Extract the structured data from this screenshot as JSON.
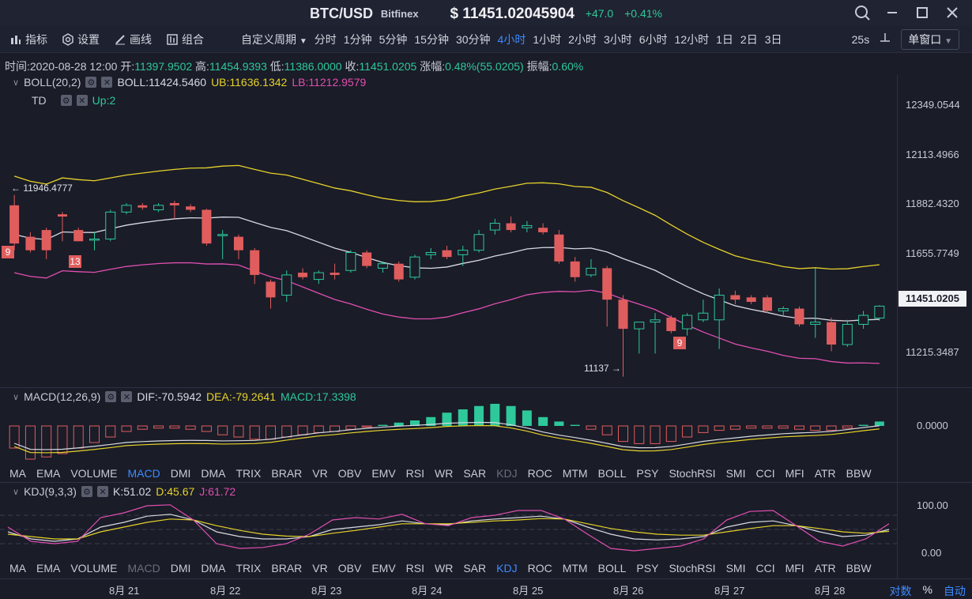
{
  "window": {
    "pair": "BTC/USD",
    "exchange": "Bitfinex",
    "price": "$ 11451.02045904",
    "change": "+47.0",
    "change_pct": "+0.41%"
  },
  "toolbar": {
    "indicator": "指标",
    "settings": "设置",
    "draw": "画线",
    "combo": "组合",
    "custom_period": "自定义周期",
    "periods": [
      "分时",
      "1分钟",
      "5分钟",
      "15分钟",
      "30分钟",
      "4小时",
      "1小时",
      "2小时",
      "3小时",
      "6小时",
      "12小时",
      "1日",
      "2日",
      "3日"
    ],
    "active_period": "4小时",
    "timer": "25s",
    "single_window": "单窗口"
  },
  "info": {
    "time_label": "时间:",
    "time": "2020-08-28 12:00",
    "open_label": "开:",
    "open": "11397.9502",
    "high_label": "高:",
    "high": "11454.9393",
    "low_label": "低:",
    "low": "11386.0000",
    "close_label": "收:",
    "close": "11451.0205",
    "chg_label": "涨幅:",
    "chg": "0.48%(55.0205)",
    "amp_label": "振幅:",
    "amp": "0.60%"
  },
  "boll": {
    "name": "BOLL(20,2)",
    "mid": "BOLL:11424.5460",
    "ub": "UB:11636.1342",
    "lb": "LB:11212.9579"
  },
  "td": {
    "name": "TD",
    "value": "Up:2"
  },
  "macd": {
    "name": "MACD(12,26,9)",
    "dif": "DIF:-70.5942",
    "dea": "DEA:-79.2641",
    "macd": "MACD:17.3398"
  },
  "kdj": {
    "name": "KDJ(9,3,3)",
    "k": "K:51.02",
    "d": "D:45.67",
    "j": "J:61.72"
  },
  "indicator_tabs_1": [
    "MA",
    "EMA",
    "VOLUME",
    "MACD",
    "DMI",
    "DMA",
    "TRIX",
    "BRAR",
    "VR",
    "OBV",
    "EMV",
    "RSI",
    "WR",
    "SAR",
    "KDJ",
    "ROC",
    "MTM",
    "BOLL",
    "PSY",
    "StochRSI",
    "SMI",
    "CCI",
    "MFI",
    "ATR",
    "BBW"
  ],
  "indicator_tabs_2": [
    "MA",
    "EMA",
    "VOLUME",
    "MACD",
    "DMI",
    "DMA",
    "TRIX",
    "BRAR",
    "VR",
    "OBV",
    "EMV",
    "RSI",
    "WR",
    "SAR",
    "KDJ",
    "ROC",
    "MTM",
    "BOLL",
    "PSY",
    "StochRSI",
    "SMI",
    "CCI",
    "MFI",
    "ATR",
    "BBW"
  ],
  "price_axis": [
    "12349.0544",
    "12113.4966",
    "11882.4320",
    "11655.7749",
    "11215.3487"
  ],
  "current_price_tag": "11451.0205",
  "macd_axis": "0.0000",
  "kdj_axis": [
    "100.00",
    "0.00"
  ],
  "dates": [
    "8月 21",
    "8月 22",
    "8月 23",
    "8月 24",
    "8月 25",
    "8月 26",
    "8月 27",
    "8月 28"
  ],
  "bottom_controls": [
    "对数",
    "%",
    "自动"
  ],
  "annotations": {
    "high": "← 11946.4777",
    "low": "11137 →"
  },
  "td_badges": [
    "9",
    "13",
    "9"
  ],
  "colors": {
    "up": "#2ec89a",
    "down": "#e05d5d",
    "accent": "#3d8bff",
    "ub": "#e6d22a",
    "lb": "#e04fb0",
    "mid": "#d8dae2"
  },
  "chart_data": {
    "type": "candlestick",
    "interval": "4h",
    "price_range": [
      11090,
      12480
    ],
    "candles": [
      {
        "o": 11900,
        "h": 11946,
        "l": 11700,
        "c": 11730
      },
      {
        "o": 11760,
        "h": 11780,
        "l": 11690,
        "c": 11700
      },
      {
        "o": 11790,
        "h": 11800,
        "l": 11660,
        "c": 11700
      },
      {
        "o": 11860,
        "h": 11870,
        "l": 11740,
        "c": 11850
      },
      {
        "o": 11790,
        "h": 11800,
        "l": 11740,
        "c": 11740
      },
      {
        "o": 11745,
        "h": 11780,
        "l": 11700,
        "c": 11750
      },
      {
        "o": 11750,
        "h": 11880,
        "l": 11740,
        "c": 11870
      },
      {
        "o": 11870,
        "h": 11910,
        "l": 11860,
        "c": 11900
      },
      {
        "o": 11900,
        "h": 11910,
        "l": 11880,
        "c": 11890
      },
      {
        "o": 11880,
        "h": 11910,
        "l": 11870,
        "c": 11900
      },
      {
        "o": 11910,
        "h": 11920,
        "l": 11840,
        "c": 11900
      },
      {
        "o": 11895,
        "h": 11905,
        "l": 11870,
        "c": 11880
      },
      {
        "o": 11880,
        "h": 11885,
        "l": 11720,
        "c": 11730
      },
      {
        "o": 11770,
        "h": 11790,
        "l": 11660,
        "c": 11770
      },
      {
        "o": 11760,
        "h": 11770,
        "l": 11660,
        "c": 11700
      },
      {
        "o": 11700,
        "h": 11710,
        "l": 11550,
        "c": 11590
      },
      {
        "o": 11560,
        "h": 11570,
        "l": 11440,
        "c": 11490
      },
      {
        "o": 11500,
        "h": 11610,
        "l": 11470,
        "c": 11590
      },
      {
        "o": 11600,
        "h": 11620,
        "l": 11570,
        "c": 11580
      },
      {
        "o": 11570,
        "h": 11610,
        "l": 11550,
        "c": 11600
      },
      {
        "o": 11600,
        "h": 11640,
        "l": 11570,
        "c": 11590
      },
      {
        "o": 11610,
        "h": 11700,
        "l": 11600,
        "c": 11690
      },
      {
        "o": 11690,
        "h": 11700,
        "l": 11620,
        "c": 11630
      },
      {
        "o": 11620,
        "h": 11650,
        "l": 11600,
        "c": 11640
      },
      {
        "o": 11640,
        "h": 11650,
        "l": 11560,
        "c": 11570
      },
      {
        "o": 11580,
        "h": 11680,
        "l": 11570,
        "c": 11670
      },
      {
        "o": 11680,
        "h": 11710,
        "l": 11660,
        "c": 11690
      },
      {
        "o": 11700,
        "h": 11720,
        "l": 11660,
        "c": 11670
      },
      {
        "o": 11680,
        "h": 11720,
        "l": 11630,
        "c": 11700
      },
      {
        "o": 11700,
        "h": 11790,
        "l": 11690,
        "c": 11770
      },
      {
        "o": 11790,
        "h": 11840,
        "l": 11770,
        "c": 11820
      },
      {
        "o": 11820,
        "h": 11850,
        "l": 11780,
        "c": 11790
      },
      {
        "o": 11800,
        "h": 11830,
        "l": 11780,
        "c": 11810
      },
      {
        "o": 11800,
        "h": 11820,
        "l": 11770,
        "c": 11780
      },
      {
        "o": 11770,
        "h": 11790,
        "l": 11640,
        "c": 11650
      },
      {
        "o": 11650,
        "h": 11670,
        "l": 11560,
        "c": 11580
      },
      {
        "o": 11590,
        "h": 11660,
        "l": 11580,
        "c": 11620
      },
      {
        "o": 11620,
        "h": 11630,
        "l": 11360,
        "c": 11480
      },
      {
        "o": 11480,
        "h": 11500,
        "l": 11137,
        "c": 11350
      },
      {
        "o": 11350,
        "h": 11380,
        "l": 11240,
        "c": 11380
      },
      {
        "o": 11380,
        "h": 11420,
        "l": 11240,
        "c": 11390
      },
      {
        "o": 11400,
        "h": 11410,
        "l": 11330,
        "c": 11340
      },
      {
        "o": 11350,
        "h": 11420,
        "l": 11320,
        "c": 11410
      },
      {
        "o": 11390,
        "h": 11480,
        "l": 11380,
        "c": 11420
      },
      {
        "o": 11390,
        "h": 11530,
        "l": 11260,
        "c": 11500
      },
      {
        "o": 11500,
        "h": 11520,
        "l": 11460,
        "c": 11480
      },
      {
        "o": 11490,
        "h": 11500,
        "l": 11460,
        "c": 11470
      },
      {
        "o": 11490,
        "h": 11500,
        "l": 11420,
        "c": 11430
      },
      {
        "o": 11430,
        "h": 11450,
        "l": 11410,
        "c": 11440
      },
      {
        "o": 11440,
        "h": 11450,
        "l": 11360,
        "c": 11370
      },
      {
        "o": 11370,
        "h": 11620,
        "l": 11310,
        "c": 11380
      },
      {
        "o": 11380,
        "h": 11400,
        "l": 11250,
        "c": 11280
      },
      {
        "o": 11280,
        "h": 11390,
        "l": 11270,
        "c": 11370
      },
      {
        "o": 11370,
        "h": 11430,
        "l": 11350,
        "c": 11410
      },
      {
        "o": 11398,
        "h": 11455,
        "l": 11386,
        "c": 11451
      }
    ],
    "macd_hist": [
      -20,
      -30,
      -28,
      -25,
      -20,
      -15,
      -10,
      -5,
      -3,
      -2,
      -2,
      -3,
      -5,
      -8,
      -10,
      -12,
      -12,
      -10,
      -8,
      -6,
      -5,
      -3,
      -1,
      1,
      3,
      5,
      8,
      12,
      15,
      18,
      20,
      18,
      14,
      8,
      4,
      1,
      -3,
      -8,
      -14,
      -16,
      -16,
      -14,
      -10,
      -6,
      -4,
      -3,
      -2,
      -2,
      -2,
      -3,
      -4,
      -4,
      -2,
      1,
      4
    ],
    "kdj_k": [
      45,
      30,
      25,
      30,
      55,
      65,
      78,
      82,
      70,
      45,
      35,
      30,
      30,
      35,
      50,
      55,
      60,
      68,
      62,
      60,
      68,
      72,
      75,
      78,
      72,
      55,
      40,
      30,
      28,
      30,
      35,
      55,
      65,
      68,
      58,
      45,
      35,
      38,
      50
    ],
    "kdj_d": [
      40,
      35,
      30,
      30,
      45,
      55,
      65,
      72,
      70,
      58,
      48,
      40,
      36,
      35,
      42,
      48,
      55,
      62,
      62,
      62,
      65,
      68,
      70,
      73,
      72,
      62,
      52,
      45,
      40,
      38,
      38,
      45,
      52,
      58,
      58,
      52,
      45,
      42,
      46
    ],
    "kdj_j": [
      55,
      25,
      20,
      25,
      75,
      85,
      100,
      102,
      70,
      20,
      10,
      12,
      20,
      40,
      70,
      75,
      72,
      82,
      62,
      58,
      75,
      80,
      90,
      90,
      72,
      40,
      10,
      5,
      10,
      15,
      30,
      70,
      88,
      90,
      58,
      25,
      15,
      30,
      62
    ]
  }
}
